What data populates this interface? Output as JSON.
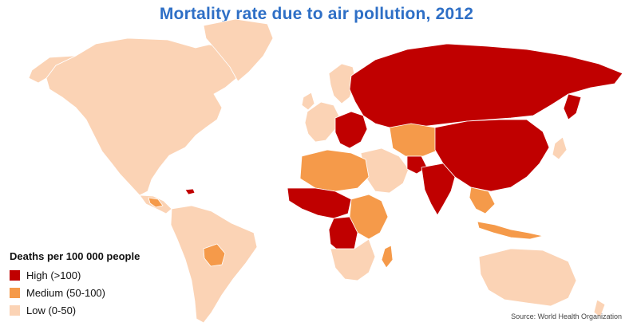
{
  "title": "Mortality rate due to air pollution, 2012",
  "legend": {
    "heading": "Deaths per 100 000 people",
    "items": [
      {
        "label": "High (>100)",
        "color": "#c00000"
      },
      {
        "label": "Medium (50-100)",
        "color": "#f59a4a"
      },
      {
        "label": "Low (0-50)",
        "color": "#fbd3b5"
      }
    ]
  },
  "source": "Source: World Health Organization",
  "colors": {
    "high": "#c00000",
    "medium": "#f59a4a",
    "low": "#fbd3b5",
    "border": "#ffffff"
  }
}
